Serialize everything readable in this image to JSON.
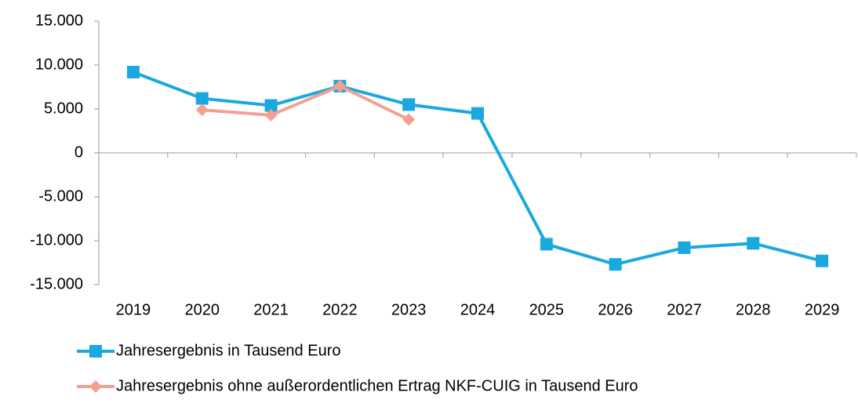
{
  "chart_data": {
    "type": "line",
    "categories": [
      "2019",
      "2020",
      "2021",
      "2022",
      "2023",
      "2024",
      "2025",
      "2026",
      "2027",
      "2028",
      "2029"
    ],
    "series": [
      {
        "name": "Jahresergebnis in Tausend Euro",
        "color": "#1aa9de",
        "marker": "square",
        "values": [
          9200,
          6200,
          5400,
          7600,
          5500,
          4500,
          -10400,
          -12700,
          -10800,
          -10300,
          -12300
        ]
      },
      {
        "name": "Jahresergebnis ohne außerordentlichen Ertrag NKF-CUIG in Tausend Euro",
        "color": "#f2a091",
        "marker": "diamond",
        "values": [
          null,
          4900,
          4300,
          7600,
          3800,
          null,
          null,
          null,
          null,
          null,
          null
        ]
      }
    ],
    "ylim": [
      -15000,
      15000
    ],
    "yticks": [
      {
        "value": -15000,
        "label": "-15.000"
      },
      {
        "value": -10000,
        "label": "-10.000"
      },
      {
        "value": -5000,
        "label": "-5.000"
      },
      0,
      {
        "value": 5000,
        "label": "5.000"
      },
      {
        "value": 10000,
        "label": "10.000"
      },
      {
        "value": 15000,
        "label": "15.000"
      }
    ],
    "grid": false,
    "legend": "bottom"
  }
}
